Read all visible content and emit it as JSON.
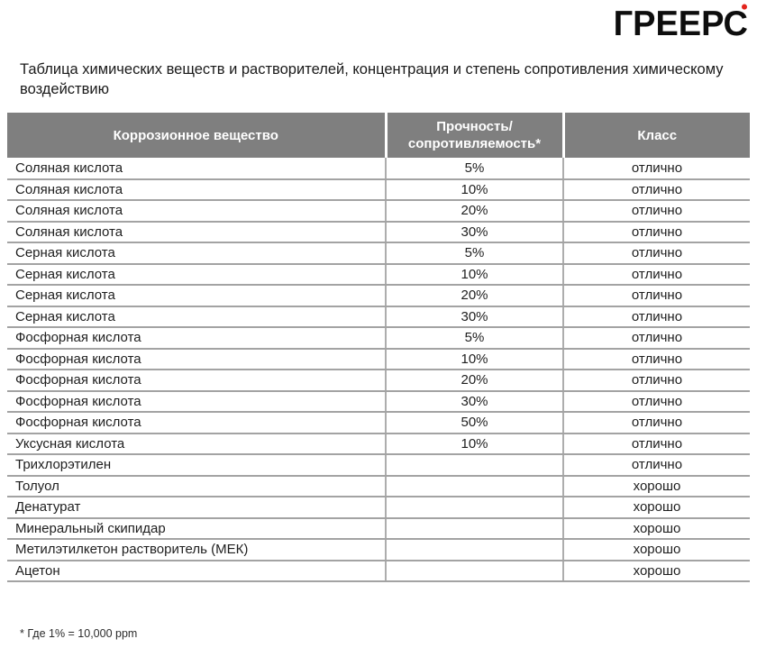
{
  "logo": {
    "text": "ГРЕЕРС",
    "accent_color": "#e3241c"
  },
  "title": "Таблица химических веществ и растворителей, концентрация и степень сопротивления химическому воздействию",
  "table": {
    "header_bg": "#7f7f7f",
    "columns": [
      "Коррозионное вещество",
      "Прочность/\nсопротивляемость*",
      "Класс"
    ],
    "rows": [
      [
        "Соляная кислота",
        "5%",
        "отлично"
      ],
      [
        "Соляная кислота",
        "10%",
        "отлично"
      ],
      [
        "Соляная кислота",
        "20%",
        "отлично"
      ],
      [
        "Соляная кислота",
        "30%",
        "отлично"
      ],
      [
        "Серная кислота",
        "5%",
        "отлично"
      ],
      [
        "Серная кислота",
        "10%",
        "отлично"
      ],
      [
        "Серная кислота",
        "20%",
        "отлично"
      ],
      [
        "Серная кислота",
        "30%",
        "отлично"
      ],
      [
        "Фосфорная кислота",
        "5%",
        "отлично"
      ],
      [
        "Фосфорная кислота",
        "10%",
        "отлично"
      ],
      [
        "Фосфорная кислота",
        "20%",
        "отлично"
      ],
      [
        "Фосфорная кислота",
        "30%",
        "отлично"
      ],
      [
        "Фосфорная кислота",
        "50%",
        "отлично"
      ],
      [
        "Уксусная кислота",
        "10%",
        "отлично"
      ],
      [
        "Трихлорэтилен",
        "",
        "отлично"
      ],
      [
        "Толуол",
        "",
        "хорошо"
      ],
      [
        "Денатурат",
        "",
        "хорошо"
      ],
      [
        "Минеральный скипидар",
        "",
        "хорошо"
      ],
      [
        "Метилэтилкетон растворитель (МЕК)",
        "",
        "хорошо"
      ],
      [
        "Ацетон",
        "",
        "хорошо"
      ]
    ]
  },
  "footnote": "* Где 1% = 10,000 ppm"
}
